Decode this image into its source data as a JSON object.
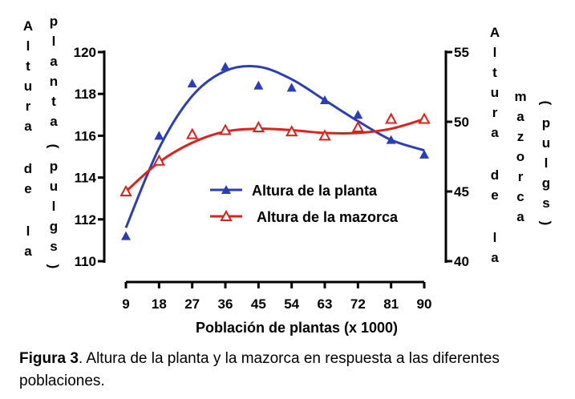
{
  "chart_data": {
    "type": "line",
    "x": [
      9,
      18,
      27,
      36,
      45,
      54,
      63,
      72,
      81,
      90
    ],
    "xlabel": "Población de plantas (x 1000)",
    "y_left": {
      "label_parts": [
        "Altura",
        "de",
        "la",
        "planta",
        "(pulgs)"
      ],
      "ylim": [
        110,
        120
      ],
      "ticks": [
        110,
        112,
        114,
        116,
        118,
        120
      ]
    },
    "y_right": {
      "label_parts": [
        "Altura",
        "de",
        "la",
        "mazorca",
        "(pulgs)"
      ],
      "ylim": [
        40,
        55
      ],
      "ticks": [
        40,
        45,
        50,
        55
      ]
    },
    "series": [
      {
        "name": "Altura de la planta",
        "axis": "left",
        "color": "#2b3eb8",
        "marker": "filled-triangle",
        "values": [
          111.2,
          116.0,
          118.5,
          119.3,
          118.4,
          118.3,
          117.7,
          117.0,
          115.8,
          115.1
        ],
        "fit": [
          111.6,
          115.4,
          117.9,
          119.1,
          119.3,
          118.7,
          117.7,
          116.7,
          115.8,
          115.3
        ]
      },
      {
        "name": "Altura de la mazorca",
        "axis": "right",
        "color": "#e0201b",
        "marker": "open-triangle",
        "values": [
          45.0,
          47.2,
          49.1,
          49.4,
          49.6,
          49.3,
          49.0,
          49.6,
          50.2,
          50.2
        ],
        "fit": [
          45.0,
          47.1,
          48.5,
          49.3,
          49.5,
          49.4,
          49.2,
          49.2,
          49.5,
          50.2
        ]
      }
    ]
  },
  "caption": {
    "label": "Figura 3",
    "text": ". Altura de la planta y la mazorca en respuesta a las diferentes poblaciones."
  }
}
